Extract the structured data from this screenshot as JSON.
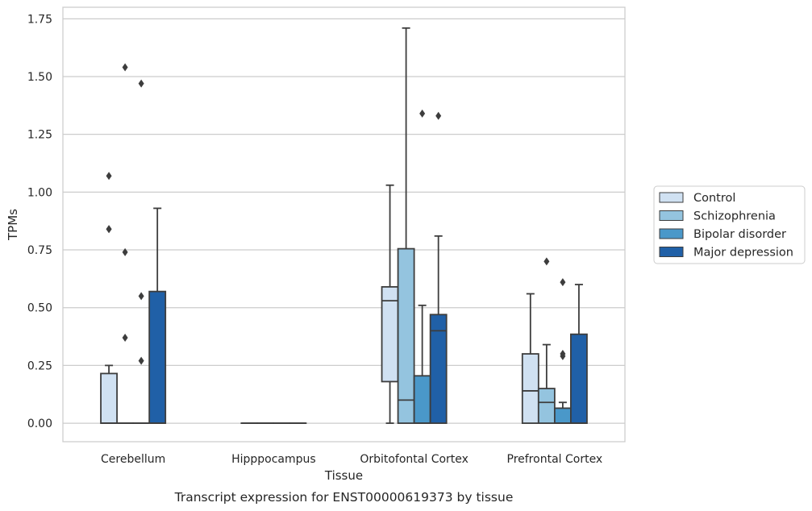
{
  "chart_data": {
    "type": "box",
    "caption": "Transcript expression for ENST00000619373 by tissue",
    "xlabel": "Tissue",
    "ylabel": "TPMs",
    "ylim": [
      -0.08,
      1.8
    ],
    "yticks": [
      "0.00",
      "0.25",
      "0.50",
      "0.75",
      "1.00",
      "1.25",
      "1.50",
      "1.75"
    ],
    "categories": [
      "Cerebellum",
      "Hipppocampus",
      "Orbitofontal Cortex",
      "Prefrontal Cortex"
    ],
    "grid": true,
    "legend_position": "right",
    "series": [
      {
        "name": "Control",
        "color": "#d0e1f2",
        "boxes": [
          {
            "q1": 0.0,
            "median": 0.0,
            "q3": 0.215,
            "whisker_low": 0.0,
            "whisker_high": 0.25,
            "outliers": [
              1.07,
              0.84,
              0.84
            ]
          },
          {
            "q1": 0.0,
            "median": 0.0,
            "q3": 0.0,
            "whisker_low": 0.0,
            "whisker_high": 0.0,
            "outliers": []
          },
          {
            "q1": 0.18,
            "median": 0.53,
            "q3": 0.59,
            "whisker_low": 0.0,
            "whisker_high": 1.03,
            "outliers": []
          },
          {
            "q1": 0.0,
            "median": 0.14,
            "q3": 0.3,
            "whisker_low": 0.0,
            "whisker_high": 0.56,
            "outliers": []
          }
        ]
      },
      {
        "name": "Schizophrenia",
        "color": "#94c4df",
        "boxes": [
          {
            "q1": 0.0,
            "median": 0.0,
            "q3": 0.0,
            "whisker_low": 0.0,
            "whisker_high": 0.0,
            "outliers": [
              1.54,
              0.74,
              0.37
            ]
          },
          {
            "q1": 0.0,
            "median": 0.0,
            "q3": 0.0,
            "whisker_low": 0.0,
            "whisker_high": 0.0,
            "outliers": []
          },
          {
            "q1": 0.0,
            "median": 0.1,
            "q3": 0.755,
            "whisker_low": 0.0,
            "whisker_high": 1.71,
            "outliers": []
          },
          {
            "q1": 0.0,
            "median": 0.09,
            "q3": 0.15,
            "whisker_low": 0.0,
            "whisker_high": 0.34,
            "outliers": [
              0.7
            ]
          }
        ]
      },
      {
        "name": "Bipolar disorder",
        "color": "#4a98c9",
        "boxes": [
          {
            "q1": 0.0,
            "median": 0.0,
            "q3": 0.0,
            "whisker_low": 0.0,
            "whisker_high": 0.0,
            "outliers": [
              1.47,
              0.55,
              0.27
            ]
          },
          {
            "q1": 0.0,
            "median": 0.0,
            "q3": 0.0,
            "whisker_low": 0.0,
            "whisker_high": 0.0,
            "outliers": []
          },
          {
            "q1": 0.0,
            "median": 0.0,
            "q3": 0.205,
            "whisker_low": 0.0,
            "whisker_high": 0.51,
            "outliers": [
              1.34
            ]
          },
          {
            "q1": 0.0,
            "median": 0.0,
            "q3": 0.065,
            "whisker_low": 0.0,
            "whisker_high": 0.09,
            "outliers": [
              0.61,
              0.3,
              0.29
            ]
          }
        ]
      },
      {
        "name": "Major depression",
        "color": "#2060a7",
        "boxes": [
          {
            "q1": 0.0,
            "median": 0.0,
            "q3": 0.57,
            "whisker_low": 0.0,
            "whisker_high": 0.93,
            "outliers": []
          },
          {
            "q1": 0.0,
            "median": 0.0,
            "q3": 0.0,
            "whisker_low": 0.0,
            "whisker_high": 0.0,
            "outliers": []
          },
          {
            "q1": 0.0,
            "median": 0.4,
            "q3": 0.47,
            "whisker_low": 0.0,
            "whisker_high": 0.81,
            "outliers": [
              1.33
            ]
          },
          {
            "q1": 0.0,
            "median": 0.0,
            "q3": 0.385,
            "whisker_low": 0.0,
            "whisker_high": 0.6,
            "outliers": []
          }
        ]
      }
    ]
  }
}
